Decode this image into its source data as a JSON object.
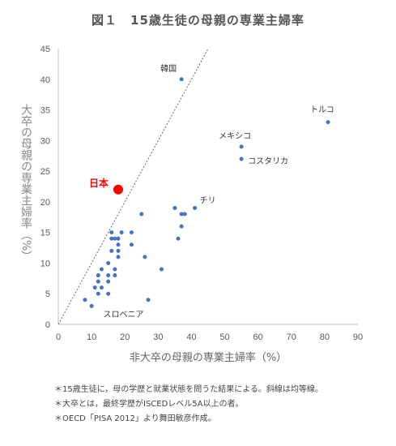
{
  "chart_data": {
    "type": "scatter",
    "title": "図１　15歳生徒の母親の専業主婦率",
    "xlabel": "非大卒の母親の専業主婦率（%）",
    "ylabel": "大卒の母親の専業主婦率（%）",
    "xlim": [
      0,
      90
    ],
    "ylim": [
      0,
      45
    ],
    "xticks": [
      "0",
      "10",
      "20",
      "30",
      "40",
      "50",
      "60",
      "70",
      "80",
      "90"
    ],
    "yticks": [
      "0",
      "5",
      "10",
      "15",
      "20",
      "25",
      "30",
      "35",
      "40",
      "45"
    ],
    "grid": false,
    "reference_line": "y = x",
    "series": [
      {
        "color": "#4472c4",
        "points": [
          [
            8,
            4
          ],
          [
            10,
            3
          ],
          [
            11,
            6
          ],
          [
            12,
            5
          ],
          [
            12,
            7
          ],
          [
            12,
            8
          ],
          [
            13,
            6
          ],
          [
            13,
            9
          ],
          [
            15,
            5
          ],
          [
            15,
            7
          ],
          [
            15,
            8
          ],
          [
            15,
            10
          ],
          [
            16,
            12
          ],
          [
            16,
            14
          ],
          [
            16,
            15
          ],
          [
            17,
            8
          ],
          [
            17,
            9
          ],
          [
            17,
            14
          ],
          [
            18,
            11
          ],
          [
            18,
            12
          ],
          [
            18,
            13
          ],
          [
            18,
            14
          ],
          [
            19,
            15
          ],
          [
            22,
            13
          ],
          [
            22,
            15
          ],
          [
            25,
            18
          ],
          [
            26,
            11
          ],
          [
            27,
            4
          ],
          [
            31,
            9
          ],
          [
            35,
            19
          ],
          [
            36,
            14
          ],
          [
            37,
            18
          ],
          [
            37,
            16
          ],
          [
            38,
            18
          ],
          [
            41,
            19
          ],
          [
            37,
            40
          ],
          [
            55,
            29
          ],
          [
            55,
            27
          ],
          [
            81,
            33
          ]
        ]
      },
      {
        "name": "日本",
        "color": "#ff0000",
        "points": [
          [
            18,
            22
          ]
        ]
      }
    ],
    "annotations": [
      {
        "text": "韓国",
        "x": 37,
        "y": 40
      },
      {
        "text": "トルコ",
        "x": 81,
        "y": 33
      },
      {
        "text": "メキシコ",
        "x": 55,
        "y": 29
      },
      {
        "text": "コスタリカ",
        "x": 55,
        "y": 27
      },
      {
        "text": "チリ",
        "x": 41,
        "y": 19
      },
      {
        "text": "日本",
        "x": 18,
        "y": 22,
        "color": "#ff0000"
      },
      {
        "text": "スロベニア",
        "x": 14,
        "y": 2
      }
    ]
  },
  "notes": [
    "＊15歳生徒に，母の学歴と就業状態を問うた結果による。斜線は均等線。",
    "＊大卒とは，最終学歴がISCEDレベル5A以上の者。",
    "＊OECD「PISA 2012」より舞田敏彦作成。"
  ]
}
